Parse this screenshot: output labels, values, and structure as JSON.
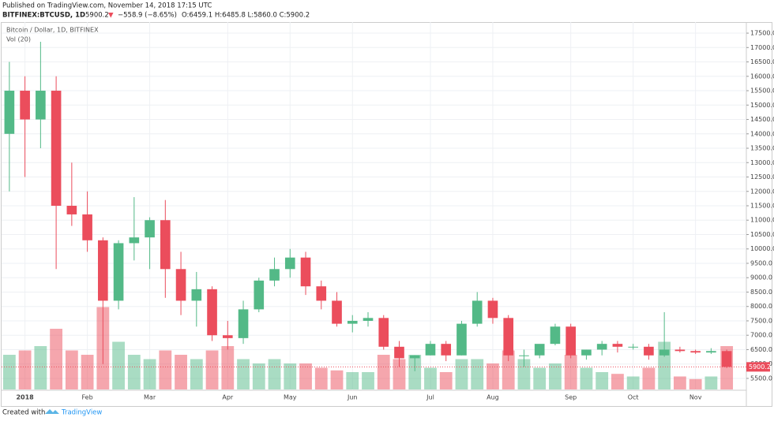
{
  "header": {
    "published": "Published on TradingView.com, November 14, 2018 17:15 UTC",
    "symbol": "BITFINEX:BTCUSD, 1D",
    "price": "5900.2",
    "arrow": "▼",
    "change": "−558.9 (−8.65%)",
    "ohlc": "O:6459.1 H:6485.8 L:5860.0 C:5900.2"
  },
  "footer": {
    "created": "Created with",
    "brand": "TradingView"
  },
  "chart_data": {
    "type": "candlestick",
    "legend": [
      "Bitcoin / Dollar, 1D, BITFINEX",
      "Vol (20)"
    ],
    "categories": [
      null,
      "2018",
      null,
      null,
      null,
      "Feb",
      null,
      null,
      null,
      "Mar",
      null,
      null,
      null,
      null,
      "Apr",
      null,
      null,
      null,
      "May",
      null,
      null,
      null,
      "Jun",
      null,
      null,
      null,
      null,
      "Jul",
      null,
      null,
      null,
      "Aug",
      null,
      null,
      null,
      null,
      "Sep",
      null,
      null,
      null,
      "Oct",
      null,
      null,
      null,
      "Nov",
      null,
      null
    ],
    "open": [
      14000,
      15500,
      14500,
      15500,
      11500,
      11200,
      10300,
      8200,
      10200,
      10400,
      11000,
      9300,
      8200,
      8600,
      7000,
      6900,
      7900,
      8900,
      9300,
      9700,
      8700,
      8200,
      7400,
      7500,
      7600,
      6600,
      6200,
      6300,
      6700,
      6300,
      7400,
      8200,
      7600,
      6300,
      6300,
      6700,
      7300,
      6300,
      6500,
      6700,
      6600,
      6600,
      6300,
      6500,
      6450,
      6400,
      6450
    ],
    "high": [
      16500,
      16000,
      17200,
      16000,
      13000,
      12000,
      10400,
      10300,
      11800,
      11100,
      11700,
      9900,
      9200,
      8700,
      7500,
      8200,
      9000,
      9700,
      10000,
      9900,
      8900,
      8500,
      7700,
      7800,
      7700,
      6800,
      6300,
      6800,
      6800,
      7500,
      8500,
      8300,
      7700,
      6500,
      6600,
      7400,
      7400,
      6500,
      6800,
      6800,
      6700,
      6700,
      7800,
      6600,
      6500,
      6550,
      6500
    ],
    "low": [
      12000,
      12500,
      13500,
      9300,
      10800,
      9900,
      6000,
      7900,
      9600,
      9300,
      8300,
      7700,
      7300,
      6800,
      6500,
      6700,
      7800,
      8700,
      9000,
      8400,
      7900,
      7300,
      7100,
      7300,
      6500,
      5900,
      5750,
      6300,
      6100,
      6300,
      7300,
      7400,
      6100,
      5900,
      6200,
      6650,
      6200,
      6150,
      6300,
      6400,
      6500,
      6150,
      6250,
      6400,
      6350,
      6350,
      5860
    ],
    "close": [
      15500,
      14500,
      15500,
      11500,
      11200,
      10300,
      8200,
      10200,
      10400,
      11000,
      9300,
      8200,
      8600,
      7000,
      6900,
      7900,
      8900,
      9300,
      9700,
      8700,
      8200,
      7400,
      7500,
      7600,
      6600,
      6200,
      6300,
      6700,
      6300,
      7400,
      8200,
      7600,
      6300,
      6300,
      6700,
      7300,
      6300,
      6500,
      6700,
      6600,
      6600,
      6300,
      6500,
      6450,
      6400,
      6450,
      5900.2
    ],
    "volume": [
      40,
      45,
      50,
      70,
      45,
      40,
      95,
      55,
      40,
      35,
      45,
      40,
      35,
      45,
      50,
      35,
      30,
      35,
      30,
      30,
      25,
      22,
      20,
      20,
      40,
      35,
      40,
      25,
      20,
      35,
      35,
      30,
      45,
      35,
      25,
      30,
      40,
      25,
      20,
      18,
      15,
      25,
      55,
      15,
      12,
      15,
      50
    ],
    "volume_lim": [
      0,
      100
    ],
    "up_color": "#53b987",
    "down_color": "#eb4d5c",
    "ylim": [
      5170,
      17830
    ],
    "yticks": [
      {
        "value": 5500,
        "label": "5500.0"
      },
      {
        "value": 6000,
        "label": "6000.0"
      },
      {
        "value": 6500,
        "label": "6500.0"
      },
      {
        "value": 7000,
        "label": "7000.0"
      },
      {
        "value": 7500,
        "label": "7500.0"
      },
      {
        "value": 8000,
        "label": "8000.0"
      },
      {
        "value": 8500,
        "label": "8500.0"
      },
      {
        "value": 9000,
        "label": "9000.0"
      },
      {
        "value": 9500,
        "label": "9500.0"
      },
      {
        "value": 10000,
        "label": "10000.0"
      },
      {
        "value": 10500,
        "label": "10500.0"
      },
      {
        "value": 11000,
        "label": "11000.0"
      },
      {
        "value": 11500,
        "label": "11500.0"
      },
      {
        "value": 12000,
        "label": "12000.0"
      },
      {
        "value": 12500,
        "label": "12500.0"
      },
      {
        "value": 13000,
        "label": "13000.0"
      },
      {
        "value": 13500,
        "label": "13500.0"
      },
      {
        "value": 14000,
        "label": "14000.0"
      },
      {
        "value": 14500,
        "label": "14500.0"
      },
      {
        "value": 15000,
        "label": "15000.0"
      },
      {
        "value": 15500,
        "label": "15500.0"
      },
      {
        "value": 16000,
        "label": "16000.0"
      },
      {
        "value": 16500,
        "label": "16500.0"
      },
      {
        "value": 17000,
        "label": "17000.0"
      },
      {
        "value": 17500,
        "label": "17500.0"
      }
    ],
    "grid": true
  }
}
